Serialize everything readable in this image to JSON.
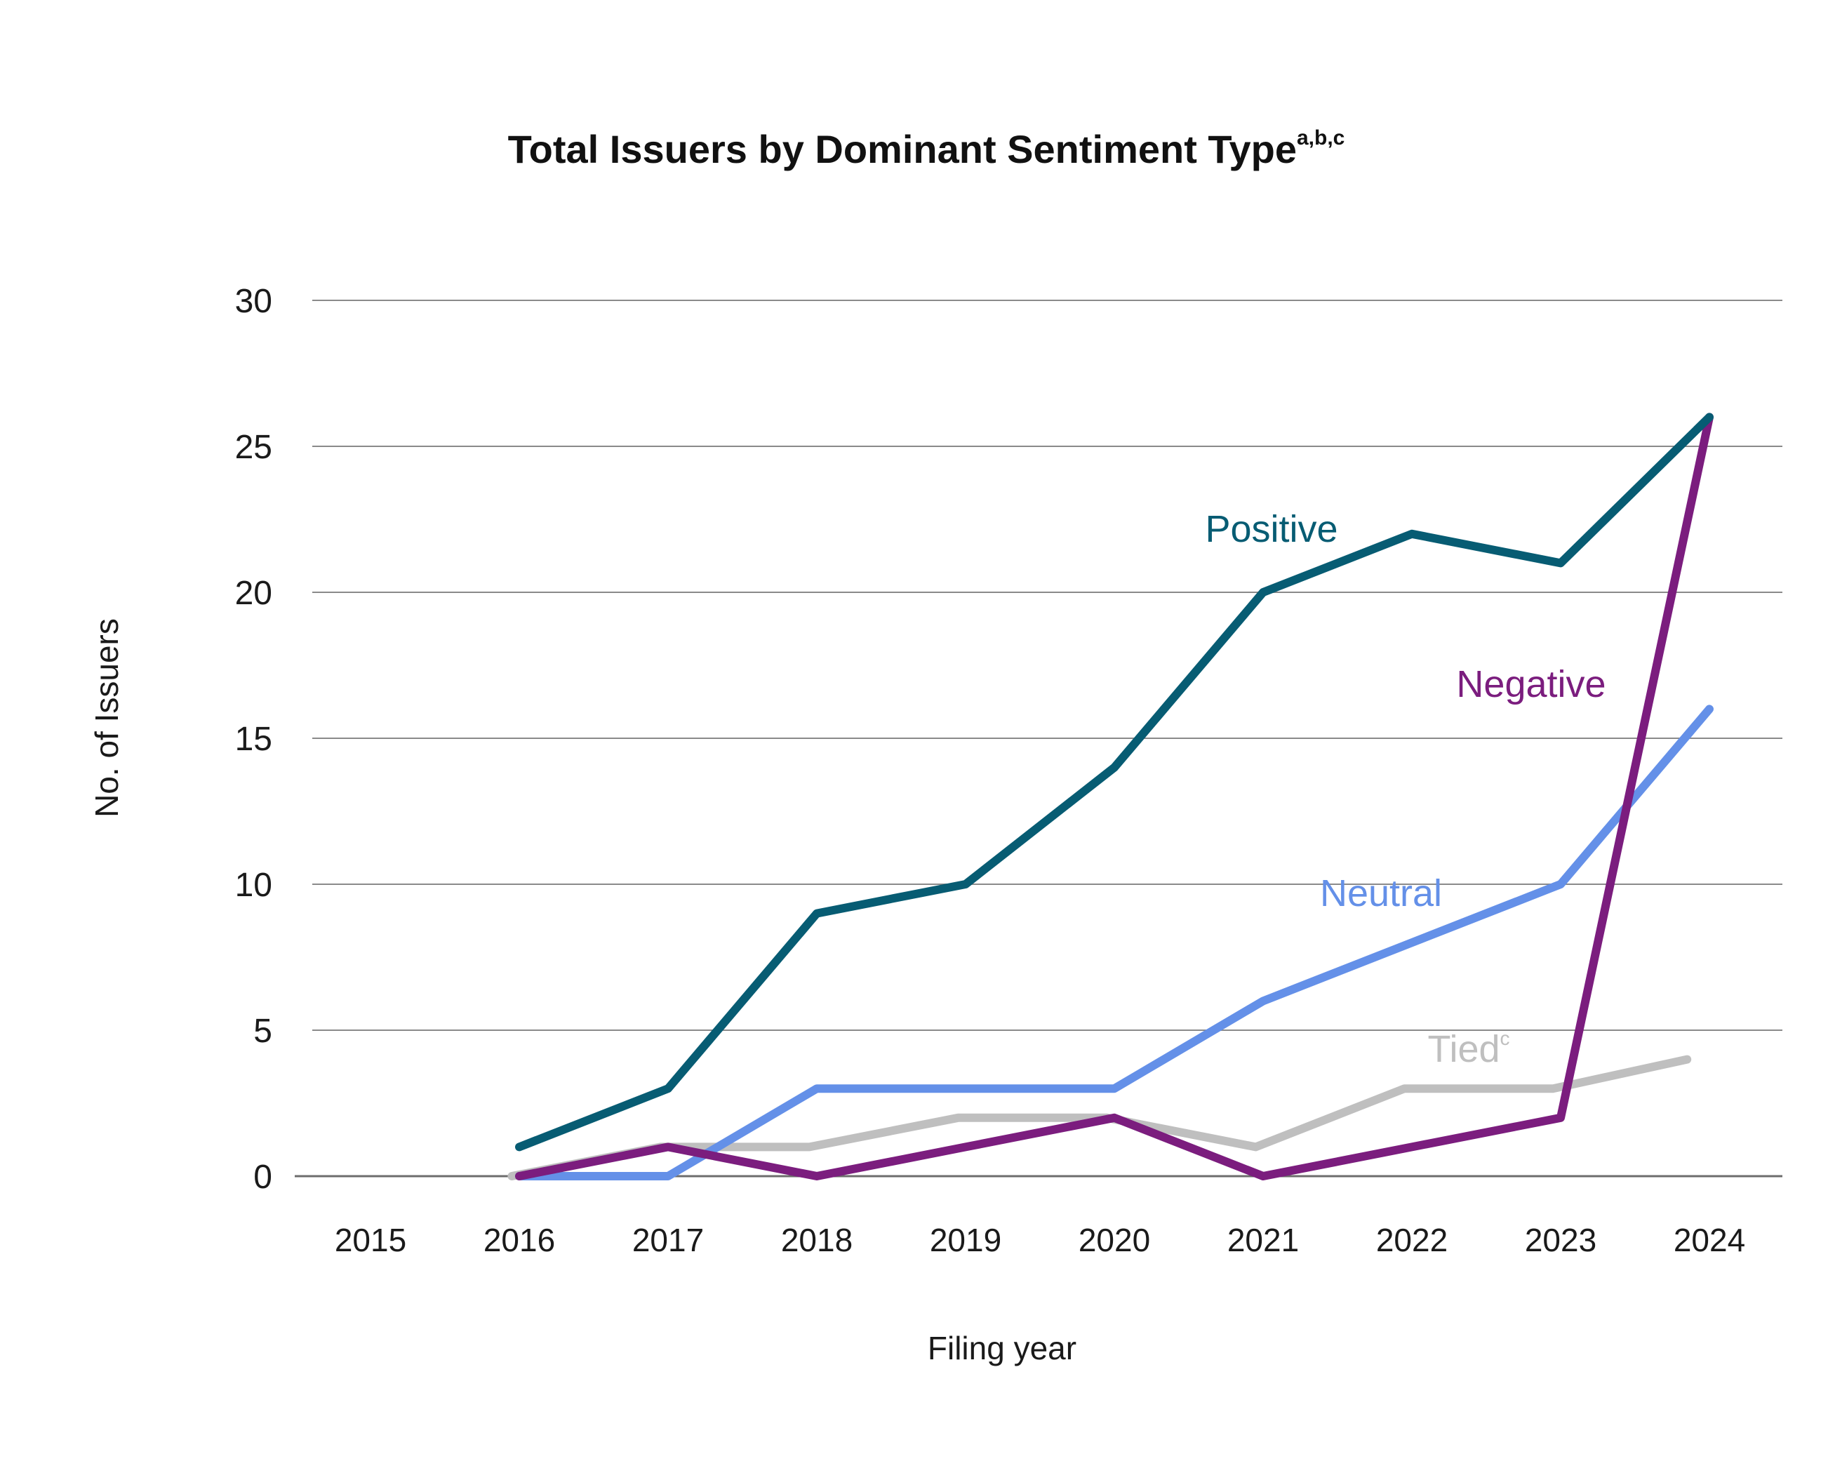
{
  "chart_data": {
    "type": "line",
    "title": "Total Issuers by Dominant Sentiment Type",
    "title_superscript": "a,b,c",
    "xlabel": "Filing year",
    "ylabel": "No. of Issuers",
    "categories": [
      "2015",
      "2016",
      "2017",
      "2018",
      "2019",
      "2020",
      "2021",
      "2022",
      "2023",
      "2024"
    ],
    "ylim": [
      0,
      30
    ],
    "yticks": [
      "0",
      "5",
      "10",
      "15",
      "20",
      "25",
      "30"
    ],
    "grid": true,
    "legend": "inline labels",
    "series": [
      {
        "name": "Tied",
        "label": "Tied",
        "label_superscript": "c",
        "color": "#bfbfbf",
        "x": [
          2015.95,
          2016.95,
          2017.95,
          2018.95,
          2019.95,
          2020.95,
          2021.95,
          2022.95,
          2023.85
        ],
        "values": [
          0,
          1,
          1,
          2,
          2,
          1,
          3,
          3,
          4
        ]
      },
      {
        "name": "Neutral",
        "label": "Neutral",
        "color": "#6490e8",
        "x": [
          2016,
          2017,
          2018,
          2019,
          2020,
          2021,
          2022,
          2023,
          2024
        ],
        "values": [
          0,
          0,
          3,
          3,
          3,
          6,
          8,
          10,
          16
        ]
      },
      {
        "name": "Negative",
        "label": "Negative",
        "color": "#7b1d7e",
        "x": [
          2016,
          2017,
          2018,
          2019,
          2020,
          2021,
          2022,
          2023,
          2024
        ],
        "values": [
          0,
          1,
          0,
          1,
          2,
          0,
          1,
          2,
          26
        ]
      },
      {
        "name": "Positive",
        "label": "Positive",
        "color": "#075c73",
        "x": [
          2016,
          2017,
          2018,
          2019,
          2020,
          2021,
          2022,
          2023,
          2024
        ],
        "values": [
          1,
          3,
          9,
          10,
          14,
          20,
          22,
          21,
          26
        ]
      }
    ]
  }
}
